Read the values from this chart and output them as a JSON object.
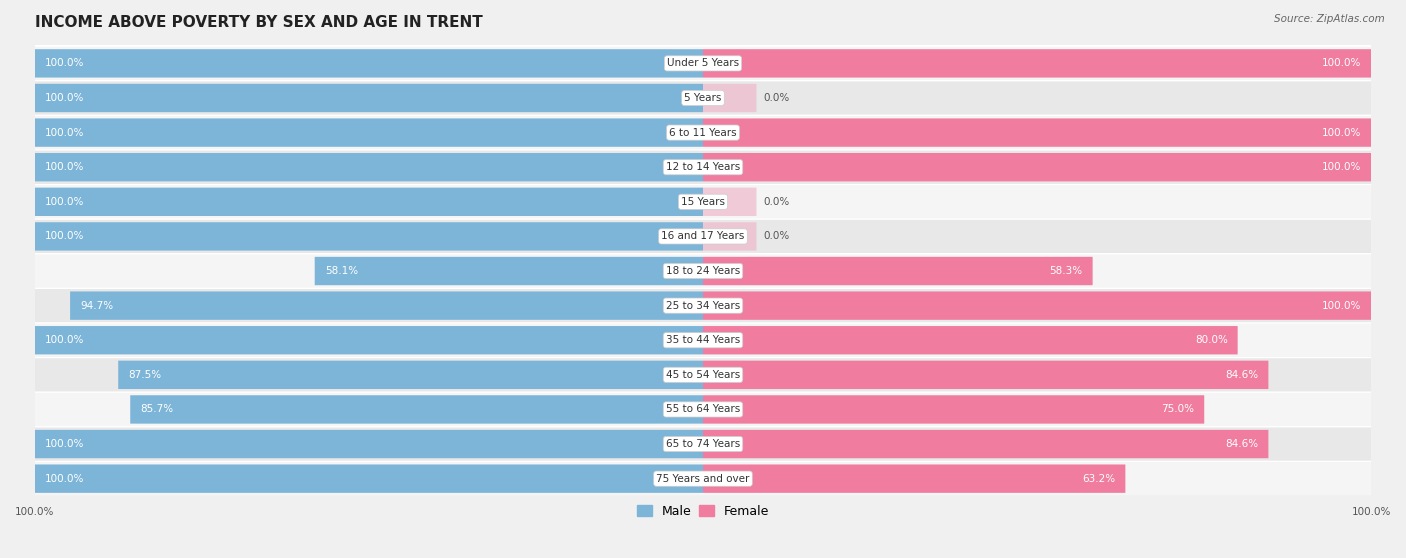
{
  "title": "INCOME ABOVE POVERTY BY SEX AND AGE IN TRENT",
  "source": "Source: ZipAtlas.com",
  "categories": [
    "Under 5 Years",
    "5 Years",
    "6 to 11 Years",
    "12 to 14 Years",
    "15 Years",
    "16 and 17 Years",
    "18 to 24 Years",
    "25 to 34 Years",
    "35 to 44 Years",
    "45 to 54 Years",
    "55 to 64 Years",
    "65 to 74 Years",
    "75 Years and over"
  ],
  "male_values": [
    100.0,
    100.0,
    100.0,
    100.0,
    100.0,
    100.0,
    58.1,
    94.7,
    100.0,
    87.5,
    85.7,
    100.0,
    100.0
  ],
  "female_values": [
    100.0,
    0.0,
    100.0,
    100.0,
    0.0,
    0.0,
    58.3,
    100.0,
    80.0,
    84.6,
    75.0,
    84.6,
    63.2
  ],
  "male_color": "#7db5d8",
  "female_color": "#f07ca0",
  "male_label": "Male",
  "female_label": "Female",
  "background_color": "#f0f0f0",
  "row_odd_color": "#e8e8e8",
  "row_even_color": "#f5f5f5",
  "title_fontsize": 11,
  "label_fontsize": 7.5,
  "value_fontsize": 7.5,
  "legend_fontsize": 9,
  "source_fontsize": 7.5,
  "bar_height": 0.82,
  "max_val": 100.0,
  "female_stub": 8.0
}
